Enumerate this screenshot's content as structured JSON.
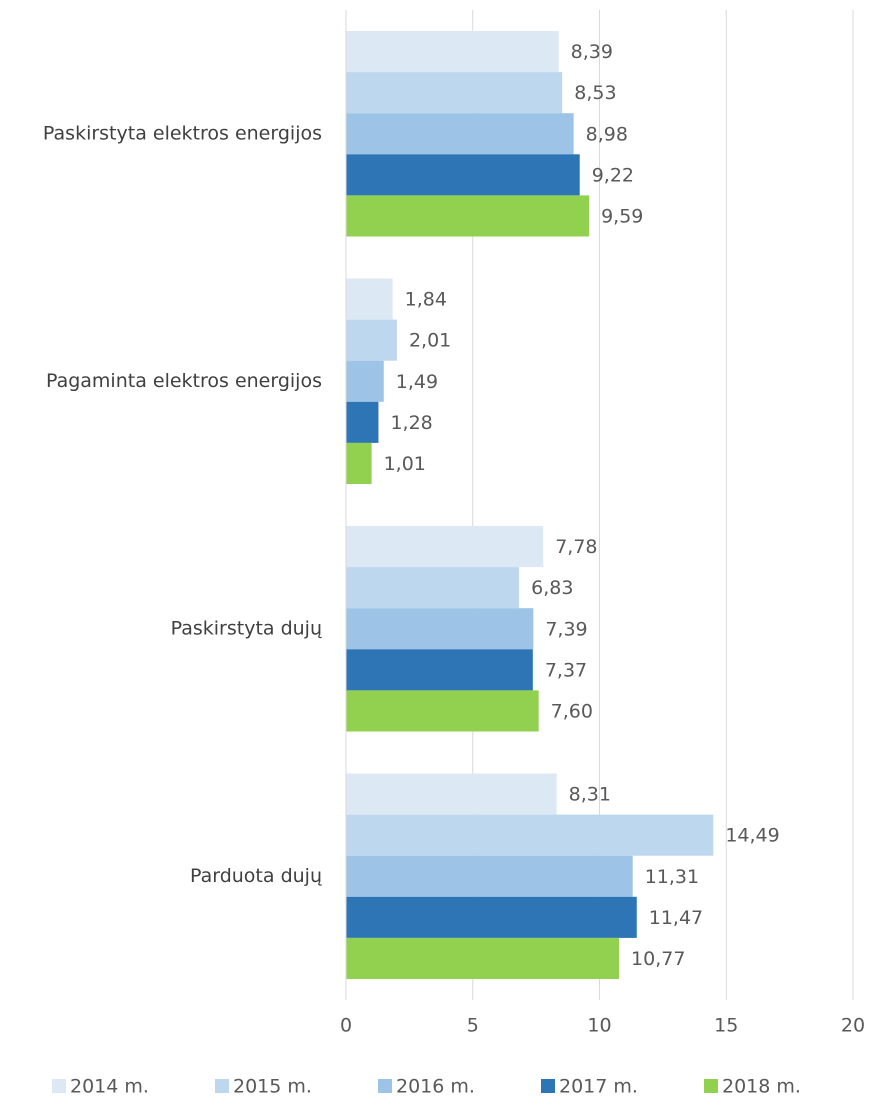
{
  "chart_data": {
    "type": "hbar",
    "categories": [
      "Paskirstyta elektros energijos",
      "Pagaminta elektros energijos",
      "Paskirstyta dujų",
      "Parduota dujų"
    ],
    "series": [
      {
        "name": "2014 m.",
        "color": "#dde8f5",
        "values": [
          8.39,
          1.84,
          7.78,
          8.31
        ],
        "value_labels": [
          "8,39",
          "1,84",
          "7,78",
          "8,31"
        ]
      },
      {
        "name": "2015 m.",
        "color": "#bdd7ee",
        "values": [
          8.53,
          2.01,
          6.83,
          14.49
        ],
        "value_labels": [
          "8,53",
          "2,01",
          "6,83",
          "14,49"
        ]
      },
      {
        "name": "2016 m.",
        "color": "#9dc3e6",
        "values": [
          8.98,
          1.49,
          7.39,
          11.31
        ],
        "value_labels": [
          "8,98",
          "1,49",
          "7,39",
          "11,31"
        ]
      },
      {
        "name": "2017 m.",
        "color": "#2e75b6",
        "values": [
          9.22,
          1.28,
          7.37,
          11.47
        ],
        "value_labels": [
          "9,22",
          "1,28",
          "7,37",
          "11,47"
        ]
      },
      {
        "name": "2018 m.",
        "color": "#92d050",
        "values": [
          9.59,
          1.01,
          7.6,
          10.77
        ],
        "value_labels": [
          "9,59",
          "1,01",
          "7,60",
          "10,77"
        ]
      }
    ],
    "xlim": [
      0,
      20
    ],
    "xticks": [
      0,
      5,
      10,
      15,
      20
    ],
    "grid": true,
    "legend": "bottom"
  }
}
